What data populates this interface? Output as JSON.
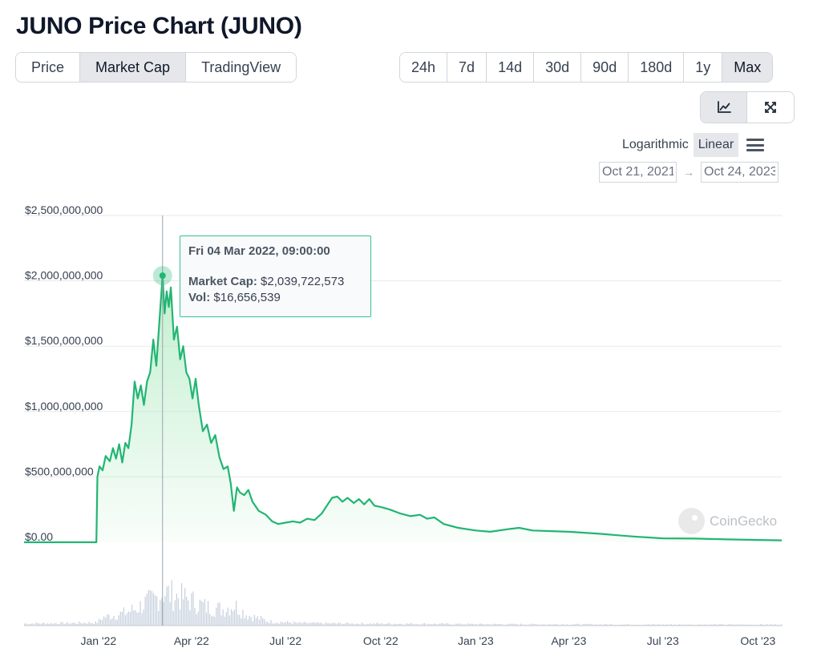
{
  "page": {
    "title": "JUNO Price Chart (JUNO)"
  },
  "view_tabs": [
    {
      "label": "Price",
      "active": false
    },
    {
      "label": "Market Cap",
      "active": true
    },
    {
      "label": "TradingView",
      "active": false
    }
  ],
  "range_tabs": [
    {
      "label": "24h",
      "active": false
    },
    {
      "label": "7d",
      "active": false
    },
    {
      "label": "14d",
      "active": false
    },
    {
      "label": "30d",
      "active": false
    },
    {
      "label": "90d",
      "active": false
    },
    {
      "label": "180d",
      "active": false
    },
    {
      "label": "1y",
      "active": false
    },
    {
      "label": "Max",
      "active": true
    }
  ],
  "chart_type_buttons": [
    {
      "icon": "line-chart-icon",
      "active": true
    },
    {
      "icon": "fullscreen-icon",
      "active": false
    }
  ],
  "scale": {
    "logarithmic_label": "Logarithmic",
    "linear_label": "Linear",
    "selected": "Linear"
  },
  "date_range": {
    "from": "Oct 21, 2021",
    "arrow": "→",
    "to": "Oct 24, 2023"
  },
  "tooltip": {
    "date": "Fri 04 Mar 2022, 09:00:00",
    "market_cap_label": "Market Cap:",
    "market_cap_value": "$2,039,722,573",
    "vol_label": "Vol:",
    "vol_value": "$16,656,539"
  },
  "watermark": {
    "text": "CoinGecko"
  },
  "colors": {
    "line": "#22b573",
    "area_top": "#b7ecc6",
    "volume": "#c5cfdd",
    "grid": "#e8e8e8",
    "tooltip_border": "#34c38f"
  },
  "chart_data": {
    "type": "area",
    "title": "",
    "xlabel": "",
    "ylabel": "",
    "ylim": [
      0,
      2500000000
    ],
    "y_ticks": [
      {
        "value": 0,
        "label": "$0.00"
      },
      {
        "value": 500000000,
        "label": "$500,000,000"
      },
      {
        "value": 1000000000,
        "label": "$1,000,000,000"
      },
      {
        "value": 1500000000,
        "label": "$1,500,000,000"
      },
      {
        "value": 2000000000,
        "label": "$2,000,000,000"
      },
      {
        "value": 2500000000,
        "label": "$2,500,000,000"
      }
    ],
    "xlim": [
      "2021-10-21",
      "2023-10-24"
    ],
    "x_ticks": [
      {
        "date": "2022-01-01",
        "label": "Jan '22"
      },
      {
        "date": "2022-04-01",
        "label": "Apr '22"
      },
      {
        "date": "2022-07-01",
        "label": "Jul '22"
      },
      {
        "date": "2022-10-01",
        "label": "Oct '22"
      },
      {
        "date": "2023-01-01",
        "label": "Jan '23"
      },
      {
        "date": "2023-04-01",
        "label": "Apr '23"
      },
      {
        "date": "2023-07-01",
        "label": "Jul '23"
      },
      {
        "date": "2023-10-01",
        "label": "Oct '23"
      }
    ],
    "grid": true,
    "highlight": {
      "date": "2022-03-04",
      "value": 2039722573
    },
    "series": [
      {
        "name": "Market Cap",
        "points": [
          [
            "2021-10-21",
            0
          ],
          [
            "2021-12-30",
            0
          ],
          [
            "2021-12-31",
            500000000
          ],
          [
            "2022-01-02",
            580000000
          ],
          [
            "2022-01-05",
            550000000
          ],
          [
            "2022-01-08",
            660000000
          ],
          [
            "2022-01-12",
            620000000
          ],
          [
            "2022-01-15",
            720000000
          ],
          [
            "2022-01-18",
            640000000
          ],
          [
            "2022-01-21",
            750000000
          ],
          [
            "2022-01-24",
            610000000
          ],
          [
            "2022-01-27",
            760000000
          ],
          [
            "2022-01-30",
            720000000
          ],
          [
            "2022-02-02",
            900000000
          ],
          [
            "2022-02-05",
            1230000000
          ],
          [
            "2022-02-08",
            1100000000
          ],
          [
            "2022-02-11",
            1200000000
          ],
          [
            "2022-02-14",
            1050000000
          ],
          [
            "2022-02-17",
            1230000000
          ],
          [
            "2022-02-20",
            1300000000
          ],
          [
            "2022-02-23",
            1550000000
          ],
          [
            "2022-02-26",
            1350000000
          ],
          [
            "2022-03-01",
            1700000000
          ],
          [
            "2022-03-04",
            2039722573
          ],
          [
            "2022-03-06",
            1750000000
          ],
          [
            "2022-03-08",
            1920000000
          ],
          [
            "2022-03-10",
            1800000000
          ],
          [
            "2022-03-12",
            1950000000
          ],
          [
            "2022-03-15",
            1550000000
          ],
          [
            "2022-03-18",
            1650000000
          ],
          [
            "2022-03-21",
            1400000000
          ],
          [
            "2022-03-24",
            1500000000
          ],
          [
            "2022-03-27",
            1300000000
          ],
          [
            "2022-03-30",
            1250000000
          ],
          [
            "2022-04-02",
            1100000000
          ],
          [
            "2022-04-05",
            1250000000
          ],
          [
            "2022-04-08",
            1050000000
          ],
          [
            "2022-04-12",
            850000000
          ],
          [
            "2022-04-16",
            900000000
          ],
          [
            "2022-04-20",
            760000000
          ],
          [
            "2022-04-24",
            820000000
          ],
          [
            "2022-04-28",
            650000000
          ],
          [
            "2022-05-02",
            560000000
          ],
          [
            "2022-05-06",
            580000000
          ],
          [
            "2022-05-09",
            450000000
          ],
          [
            "2022-05-12",
            240000000
          ],
          [
            "2022-05-15",
            420000000
          ],
          [
            "2022-05-18",
            380000000
          ],
          [
            "2022-05-22",
            360000000
          ],
          [
            "2022-05-26",
            400000000
          ],
          [
            "2022-05-30",
            310000000
          ],
          [
            "2022-06-05",
            240000000
          ],
          [
            "2022-06-12",
            210000000
          ],
          [
            "2022-06-18",
            160000000
          ],
          [
            "2022-06-24",
            140000000
          ],
          [
            "2022-07-01",
            150000000
          ],
          [
            "2022-07-08",
            160000000
          ],
          [
            "2022-07-15",
            150000000
          ],
          [
            "2022-07-22",
            180000000
          ],
          [
            "2022-07-29",
            170000000
          ],
          [
            "2022-08-05",
            220000000
          ],
          [
            "2022-08-10",
            280000000
          ],
          [
            "2022-08-15",
            340000000
          ],
          [
            "2022-08-20",
            350000000
          ],
          [
            "2022-08-25",
            310000000
          ],
          [
            "2022-08-30",
            340000000
          ],
          [
            "2022-09-05",
            300000000
          ],
          [
            "2022-09-10",
            330000000
          ],
          [
            "2022-09-15",
            290000000
          ],
          [
            "2022-09-20",
            330000000
          ],
          [
            "2022-09-25",
            280000000
          ],
          [
            "2022-10-01",
            270000000
          ],
          [
            "2022-10-10",
            250000000
          ],
          [
            "2022-10-20",
            220000000
          ],
          [
            "2022-10-30",
            200000000
          ],
          [
            "2022-11-08",
            210000000
          ],
          [
            "2022-11-15",
            180000000
          ],
          [
            "2022-11-22",
            190000000
          ],
          [
            "2022-12-01",
            140000000
          ],
          [
            "2022-12-15",
            110000000
          ],
          [
            "2023-01-01",
            90000000
          ],
          [
            "2023-01-15",
            80000000
          ],
          [
            "2023-02-01",
            100000000
          ],
          [
            "2023-02-12",
            110000000
          ],
          [
            "2023-02-25",
            90000000
          ],
          [
            "2023-03-15",
            85000000
          ],
          [
            "2023-04-01",
            80000000
          ],
          [
            "2023-05-01",
            65000000
          ],
          [
            "2023-06-01",
            45000000
          ],
          [
            "2023-07-01",
            30000000
          ],
          [
            "2023-08-01",
            28000000
          ],
          [
            "2023-09-01",
            22000000
          ],
          [
            "2023-10-01",
            18000000
          ],
          [
            "2023-10-24",
            15000000
          ]
        ]
      },
      {
        "name": "Vol",
        "points": [
          [
            "2021-10-21",
            1000000
          ],
          [
            "2021-12-01",
            1200000
          ],
          [
            "2021-12-30",
            1500000
          ],
          [
            "2022-01-05",
            4000000
          ],
          [
            "2022-01-15",
            5000000
          ],
          [
            "2022-01-25",
            6000000
          ],
          [
            "2022-02-05",
            8000000
          ],
          [
            "2022-02-15",
            11000000
          ],
          [
            "2022-02-25",
            13000000
          ],
          [
            "2022-03-04",
            16656539
          ],
          [
            "2022-03-12",
            15000000
          ],
          [
            "2022-03-20",
            14000000
          ],
          [
            "2022-04-01",
            12000000
          ],
          [
            "2022-04-15",
            9000000
          ],
          [
            "2022-05-01",
            8000000
          ],
          [
            "2022-05-12",
            10000000
          ],
          [
            "2022-05-25",
            5000000
          ],
          [
            "2022-06-15",
            2000000
          ],
          [
            "2022-07-15",
            1200000
          ],
          [
            "2022-09-01",
            1000000
          ],
          [
            "2022-11-01",
            900000
          ],
          [
            "2023-01-01",
            700000
          ],
          [
            "2023-04-01",
            600000
          ],
          [
            "2023-07-01",
            500000
          ],
          [
            "2023-10-24",
            500000
          ]
        ]
      }
    ]
  }
}
